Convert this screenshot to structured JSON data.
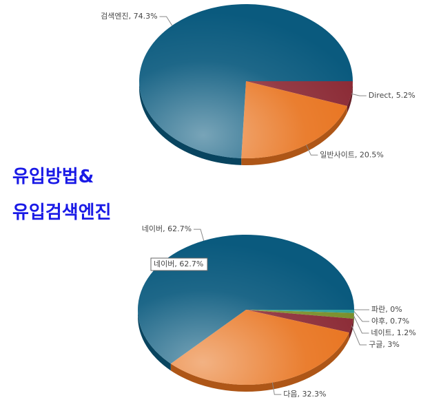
{
  "heading": [
    "유입방법&",
    "유입검색엔진"
  ],
  "chart_data": [
    {
      "type": "pie",
      "values": [
        5.2,
        20.5,
        74.3
      ],
      "value_labels": [
        "Direct, 5.2%",
        "일반사이트, 20.5%",
        "검색엔진, 74.3%"
      ],
      "colors": [
        "#8b2a35",
        "#e8731e",
        "#0a5a7e"
      ]
    },
    {
      "type": "pie",
      "values": [
        0,
        0.7,
        1.2,
        3,
        32.3,
        62.7
      ],
      "value_labels": [
        "파란, 0%",
        "야후, 0.7%",
        "네이트, 1.2%",
        "구글, 3%",
        "다음, 32.3%",
        "네이버, 62.7%"
      ],
      "colors": [
        "#5bc0de",
        "#2e9f9a",
        "#7a8f2a",
        "#8b2a35",
        "#e8731e",
        "#0a5a7e"
      ],
      "tooltip": "네이버, 62.7%"
    }
  ]
}
